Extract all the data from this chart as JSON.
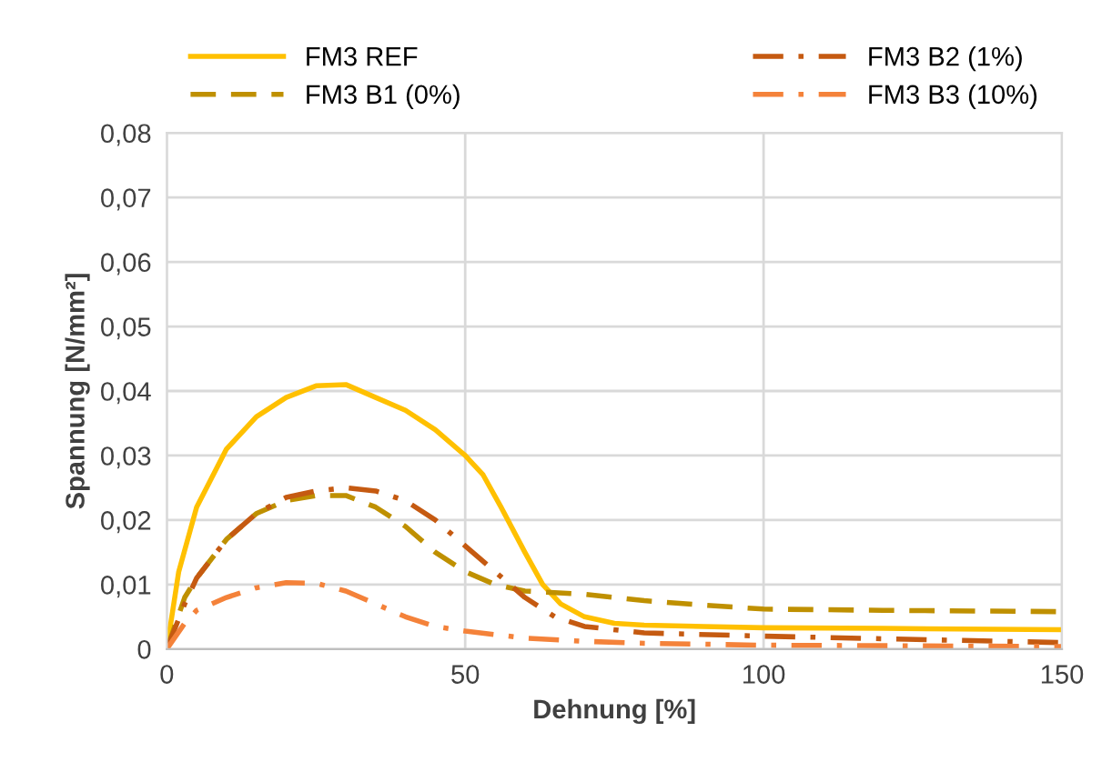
{
  "chart_data": {
    "type": "line",
    "xlabel": "Dehnung [%]",
    "ylabel": "Spannung [N/mm²]",
    "xlim": [
      0,
      150
    ],
    "xticks": [
      0,
      50,
      100,
      150
    ],
    "ylim": [
      0,
      0.08
    ],
    "yticks": [
      {
        "value": 0,
        "label": "0"
      },
      {
        "value": 0.01,
        "label": "0,01"
      },
      {
        "value": 0.02,
        "label": "0,02"
      },
      {
        "value": 0.03,
        "label": "0,03"
      },
      {
        "value": 0.04,
        "label": "0,04"
      },
      {
        "value": 0.05,
        "label": "0,05"
      },
      {
        "value": 0.06,
        "label": "0,06"
      },
      {
        "value": 0.07,
        "label": "0,07"
      },
      {
        "value": 0.08,
        "label": "0,08"
      }
    ],
    "grid": true,
    "legend": "top",
    "marker": "none",
    "series": [
      {
        "name": "FM3 REF",
        "color": "#ffc000",
        "line_style": "solid",
        "x": [
          0,
          2,
          5,
          10,
          15,
          20,
          25,
          30,
          35,
          40,
          45,
          50,
          53,
          56,
          60,
          63,
          66,
          70,
          75,
          80,
          90,
          100,
          120,
          150
        ],
        "values": [
          0,
          0.012,
          0.022,
          0.031,
          0.036,
          0.039,
          0.0408,
          0.041,
          0.039,
          0.037,
          0.034,
          0.03,
          0.027,
          0.022,
          0.015,
          0.01,
          0.007,
          0.005,
          0.004,
          0.0037,
          0.0035,
          0.0033,
          0.0032,
          0.003
        ]
      },
      {
        "name": "FM3 B1 (0%)",
        "color": "#bf9000",
        "line_style": "dashed",
        "x": [
          0,
          3,
          5,
          10,
          15,
          20,
          25,
          30,
          35,
          40,
          45,
          50,
          55,
          60,
          70,
          80,
          90,
          100,
          120,
          150
        ],
        "values": [
          0,
          0.008,
          0.011,
          0.017,
          0.021,
          0.023,
          0.0238,
          0.0238,
          0.022,
          0.019,
          0.015,
          0.012,
          0.01,
          0.009,
          0.0085,
          0.0075,
          0.0068,
          0.0062,
          0.006,
          0.0058
        ]
      },
      {
        "name": "FM3 B2 (1%)",
        "color": "#c55a11",
        "line_style": "dashdot",
        "x": [
          0,
          3,
          5,
          10,
          15,
          20,
          25,
          30,
          35,
          40,
          45,
          50,
          55,
          60,
          65,
          70,
          80,
          100,
          150
        ],
        "values": [
          0,
          0.007,
          0.011,
          0.017,
          0.021,
          0.0235,
          0.0245,
          0.025,
          0.0245,
          0.023,
          0.02,
          0.016,
          0.012,
          0.008,
          0.005,
          0.0035,
          0.0025,
          0.002,
          0.001
        ]
      },
      {
        "name": "FM3 B3 (10%)",
        "color": "#f4823a",
        "line_style": "dashdot",
        "x": [
          0,
          3,
          5,
          10,
          15,
          20,
          25,
          30,
          35,
          40,
          45,
          50,
          60,
          70,
          80,
          100,
          150
        ],
        "values": [
          0,
          0.004,
          0.006,
          0.008,
          0.0095,
          0.0103,
          0.0102,
          0.009,
          0.007,
          0.005,
          0.0035,
          0.0028,
          0.0017,
          0.0012,
          0.0009,
          0.0006,
          0.0004
        ]
      }
    ]
  }
}
